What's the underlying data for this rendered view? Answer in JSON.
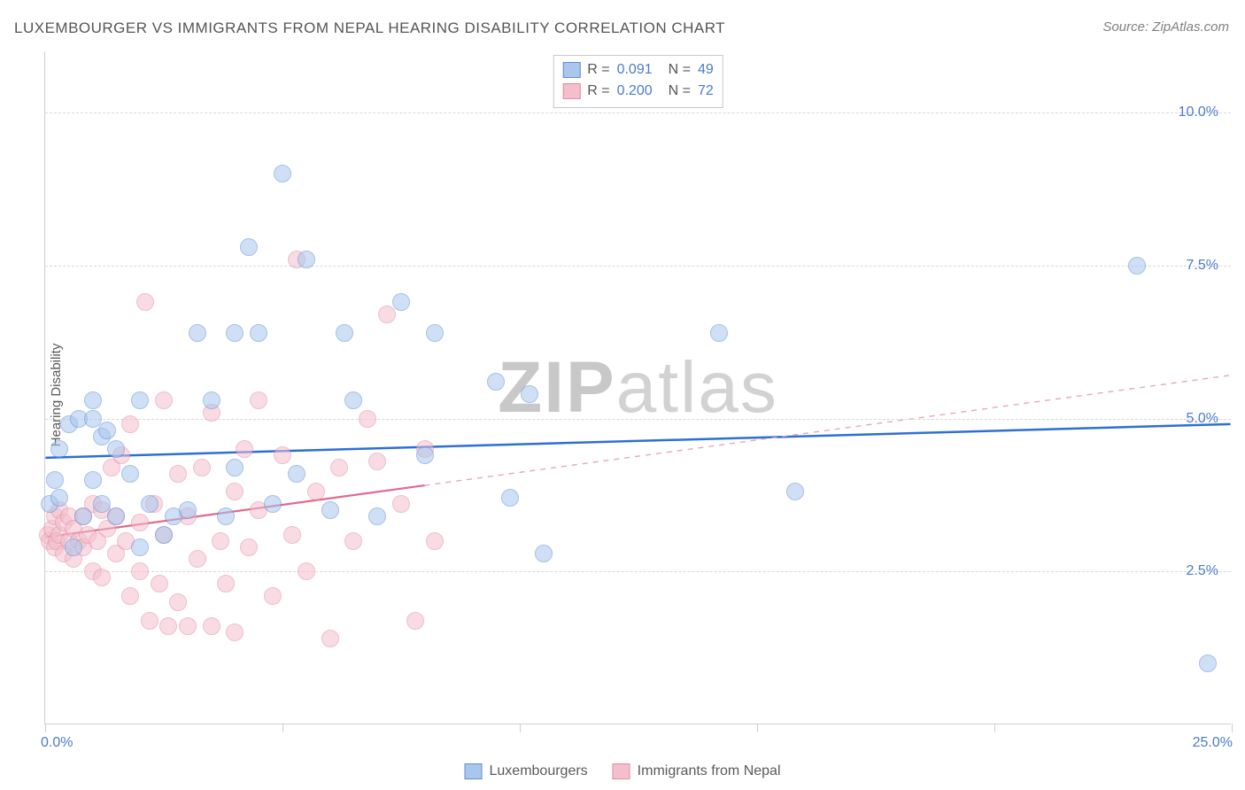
{
  "title": "LUXEMBOURGER VS IMMIGRANTS FROM NEPAL HEARING DISABILITY CORRELATION CHART",
  "source": "Source: ZipAtlas.com",
  "y_axis_label": "Hearing Disability",
  "watermark_a": "ZIP",
  "watermark_b": "atlas",
  "chart": {
    "type": "scatter",
    "xlim": [
      0,
      25
    ],
    "ylim": [
      0,
      11
    ],
    "y_ticks": [
      2.5,
      5.0,
      7.5,
      10.0
    ],
    "y_tick_labels": [
      "2.5%",
      "5.0%",
      "7.5%",
      "10.0%"
    ],
    "x_ticks": [
      0,
      5,
      10,
      15,
      20,
      25
    ],
    "x_tick_labels_shown": {
      "0": "0.0%",
      "25": "25.0%"
    },
    "background_color": "#ffffff",
    "grid_color": "#d8d8d8",
    "axis_color": "#cfcfcf",
    "marker_radius": 10,
    "marker_opacity": 0.55,
    "legend_top": [
      {
        "swatch_fill": "#a9c6ed",
        "swatch_border": "#5d8fd6",
        "r": "0.091",
        "n": "49"
      },
      {
        "swatch_fill": "#f4bfcd",
        "swatch_border": "#e48aa3",
        "r": "0.200",
        "n": "72"
      }
    ],
    "legend_bottom": [
      {
        "label": "Luxembourgers",
        "swatch_fill": "#a9c6ed",
        "swatch_border": "#5d8fd6"
      },
      {
        "label": "Immigrants from Nepal",
        "swatch_fill": "#f4bfcd",
        "swatch_border": "#e48aa3"
      }
    ],
    "series": [
      {
        "name": "Luxembourgers",
        "color_fill": "#a9c6ed",
        "color_border": "#5d8fd6",
        "trend": {
          "x1": 0,
          "y1": 4.35,
          "x2": 25,
          "y2": 4.9,
          "solid_until_x": 25,
          "color": "#2d6fd6",
          "width": 2.5
        },
        "points": [
          [
            0.1,
            3.6
          ],
          [
            0.2,
            4.0
          ],
          [
            0.3,
            3.7
          ],
          [
            0.3,
            4.5
          ],
          [
            0.5,
            4.9
          ],
          [
            0.6,
            2.9
          ],
          [
            0.7,
            5.0
          ],
          [
            0.8,
            3.4
          ],
          [
            1.0,
            4.0
          ],
          [
            1.0,
            5.3
          ],
          [
            1.0,
            5.0
          ],
          [
            1.2,
            4.7
          ],
          [
            1.2,
            3.6
          ],
          [
            1.3,
            4.8
          ],
          [
            1.5,
            3.4
          ],
          [
            1.5,
            4.5
          ],
          [
            1.8,
            4.1
          ],
          [
            2.0,
            5.3
          ],
          [
            2.0,
            2.9
          ],
          [
            2.2,
            3.6
          ],
          [
            2.5,
            3.1
          ],
          [
            2.7,
            3.4
          ],
          [
            3.0,
            3.5
          ],
          [
            3.2,
            6.4
          ],
          [
            3.5,
            5.3
          ],
          [
            3.8,
            3.4
          ],
          [
            4.0,
            6.4
          ],
          [
            4.0,
            4.2
          ],
          [
            4.3,
            7.8
          ],
          [
            4.5,
            6.4
          ],
          [
            4.8,
            3.6
          ],
          [
            5.0,
            9.0
          ],
          [
            5.3,
            4.1
          ],
          [
            5.5,
            7.6
          ],
          [
            6.0,
            3.5
          ],
          [
            6.3,
            6.4
          ],
          [
            6.5,
            5.3
          ],
          [
            7.0,
            3.4
          ],
          [
            7.5,
            6.9
          ],
          [
            8.0,
            4.4
          ],
          [
            8.2,
            6.4
          ],
          [
            9.5,
            5.6
          ],
          [
            9.8,
            3.7
          ],
          [
            10.2,
            5.4
          ],
          [
            10.5,
            2.8
          ],
          [
            14.2,
            6.4
          ],
          [
            15.8,
            3.8
          ],
          [
            23.0,
            7.5
          ],
          [
            24.5,
            1.0
          ]
        ]
      },
      {
        "name": "Immigrants from Nepal",
        "color_fill": "#f4bfcd",
        "color_border": "#e48aa3",
        "trend": {
          "x1": 0,
          "y1": 3.05,
          "x2": 25,
          "y2": 5.7,
          "solid_until_x": 8,
          "color": "#e16a8c",
          "width": 2.2,
          "dash_color": "#e9a1b5"
        },
        "points": [
          [
            0.05,
            3.1
          ],
          [
            0.1,
            3.0
          ],
          [
            0.15,
            3.2
          ],
          [
            0.2,
            2.9
          ],
          [
            0.2,
            3.4
          ],
          [
            0.25,
            3.0
          ],
          [
            0.3,
            3.1
          ],
          [
            0.3,
            3.5
          ],
          [
            0.4,
            2.8
          ],
          [
            0.4,
            3.3
          ],
          [
            0.5,
            3.0
          ],
          [
            0.5,
            3.4
          ],
          [
            0.6,
            2.7
          ],
          [
            0.6,
            3.2
          ],
          [
            0.7,
            3.0
          ],
          [
            0.8,
            3.4
          ],
          [
            0.8,
            2.9
          ],
          [
            0.9,
            3.1
          ],
          [
            1.0,
            2.5
          ],
          [
            1.0,
            3.6
          ],
          [
            1.1,
            3.0
          ],
          [
            1.2,
            3.5
          ],
          [
            1.2,
            2.4
          ],
          [
            1.3,
            3.2
          ],
          [
            1.4,
            4.2
          ],
          [
            1.5,
            2.8
          ],
          [
            1.5,
            3.4
          ],
          [
            1.6,
            4.4
          ],
          [
            1.7,
            3.0
          ],
          [
            1.8,
            2.1
          ],
          [
            1.8,
            4.9
          ],
          [
            2.0,
            3.3
          ],
          [
            2.0,
            2.5
          ],
          [
            2.1,
            6.9
          ],
          [
            2.2,
            1.7
          ],
          [
            2.3,
            3.6
          ],
          [
            2.4,
            2.3
          ],
          [
            2.5,
            3.1
          ],
          [
            2.5,
            5.3
          ],
          [
            2.6,
            1.6
          ],
          [
            2.8,
            4.1
          ],
          [
            2.8,
            2.0
          ],
          [
            3.0,
            3.4
          ],
          [
            3.0,
            1.6
          ],
          [
            3.2,
            2.7
          ],
          [
            3.3,
            4.2
          ],
          [
            3.5,
            1.6
          ],
          [
            3.5,
            5.1
          ],
          [
            3.7,
            3.0
          ],
          [
            3.8,
            2.3
          ],
          [
            4.0,
            3.8
          ],
          [
            4.0,
            1.5
          ],
          [
            4.2,
            4.5
          ],
          [
            4.3,
            2.9
          ],
          [
            4.5,
            3.5
          ],
          [
            4.5,
            5.3
          ],
          [
            4.8,
            2.1
          ],
          [
            5.0,
            4.4
          ],
          [
            5.2,
            3.1
          ],
          [
            5.3,
            7.6
          ],
          [
            5.5,
            2.5
          ],
          [
            5.7,
            3.8
          ],
          [
            6.0,
            1.4
          ],
          [
            6.2,
            4.2
          ],
          [
            6.5,
            3.0
          ],
          [
            6.8,
            5.0
          ],
          [
            7.0,
            4.3
          ],
          [
            7.2,
            6.7
          ],
          [
            7.5,
            3.6
          ],
          [
            7.8,
            1.7
          ],
          [
            8.0,
            4.5
          ],
          [
            8.2,
            3.0
          ]
        ]
      }
    ]
  }
}
